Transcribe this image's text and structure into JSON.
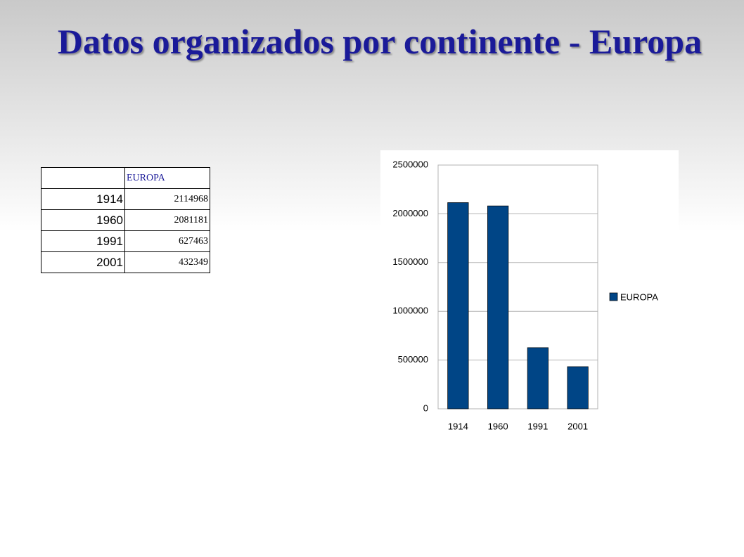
{
  "title": "Datos organizados por continente - Europa",
  "table": {
    "header": "EUROPA",
    "rows": [
      [
        1914,
        2114968
      ],
      [
        1960,
        2081181
      ],
      [
        1991,
        627463
      ],
      [
        2001,
        432349
      ]
    ]
  },
  "chart_data": {
    "type": "bar",
    "categories": [
      "1914",
      "1960",
      "1991",
      "2001"
    ],
    "series": [
      {
        "name": "EUROPA",
        "color": "#004586",
        "values": [
          2114968,
          2081181,
          627463,
          432349
        ]
      }
    ],
    "ylim": [
      0,
      2500000
    ],
    "yticks": [
      0,
      500000,
      1000000,
      1500000,
      2000000,
      2500000
    ],
    "grid": true,
    "legend": "right"
  }
}
